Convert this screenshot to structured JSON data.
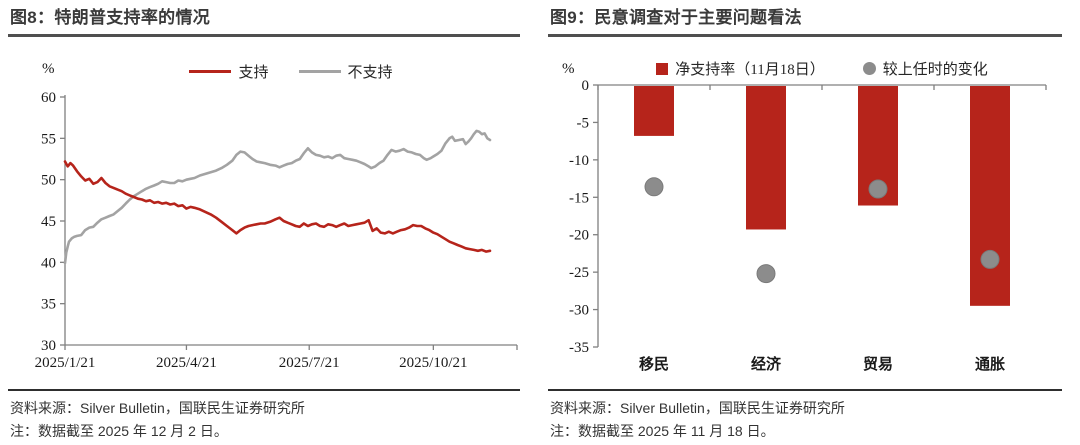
{
  "colors": {
    "red": "#B6241B",
    "line_gray": "#A3A3A3",
    "dot_gray": "#8C8C8C",
    "axis_gray": "#808080",
    "title_text": "#3a3a3a",
    "caption_text": "#333333"
  },
  "panels": {
    "left": {
      "title": "图8：特朗普支持率的情况",
      "unit": "%",
      "legend": [
        {
          "label": "支持",
          "color": "#B6241B"
        },
        {
          "label": "不支持",
          "color": "#A3A3A3"
        }
      ],
      "source": "资料来源：Silver Bulletin，国联民生证券研究所",
      "note": "注：数据截至 2025 年 12 月 2 日。"
    },
    "right": {
      "title": "图9：民意调查对于主要问题看法",
      "unit": "%",
      "legend": [
        {
          "label": "净支持率（11月18日）",
          "color": "#B6241B"
        },
        {
          "label": "较上任时的变化",
          "color": "#8C8C8C"
        }
      ],
      "source": "资料来源：Silver Bulletin，国联民生证券研究所",
      "note": "注：数据截至 2025 年 11 月 18 日。"
    }
  },
  "chart_data": [
    {
      "type": "line",
      "title": "特朗普支持率的情况",
      "ylabel": "%",
      "ylim": [
        30,
        60
      ],
      "yticks": [
        60,
        55,
        50,
        45,
        40,
        35,
        30
      ],
      "xticks": [
        "2025/1/21",
        "2025/4/21",
        "2025/7/21",
        "2025/10/21"
      ],
      "xtick_days": [
        0,
        90,
        181,
        273
      ],
      "axis_end_day": 335,
      "grid": false,
      "legend_position": "top",
      "series": [
        {
          "name": "不支持",
          "color": "#A3A3A3",
          "points": [
            [
              0,
              39.9
            ],
            [
              1,
              41.2
            ],
            [
              2,
              41.9
            ],
            [
              3,
              42.5
            ],
            [
              5,
              42.9
            ],
            [
              7,
              43.1
            ],
            [
              9,
              43.2
            ],
            [
              12,
              43.3
            ],
            [
              15,
              43.9
            ],
            [
              18,
              44.2
            ],
            [
              21,
              44.3
            ],
            [
              24,
              44.8
            ],
            [
              27,
              45.2
            ],
            [
              30,
              45.4
            ],
            [
              33,
              45.6
            ],
            [
              36,
              45.8
            ],
            [
              39,
              46.2
            ],
            [
              42,
              46.6
            ],
            [
              45,
              47.1
            ],
            [
              48,
              47.6
            ],
            [
              51,
              48.0
            ],
            [
              54,
              48.3
            ],
            [
              57,
              48.6
            ],
            [
              60,
              48.9
            ],
            [
              63,
              49.1
            ],
            [
              66,
              49.3
            ],
            [
              69,
              49.5
            ],
            [
              72,
              49.8
            ],
            [
              75,
              49.7
            ],
            [
              78,
              49.6
            ],
            [
              81,
              49.6
            ],
            [
              84,
              49.9
            ],
            [
              87,
              49.8
            ],
            [
              90,
              50.0
            ],
            [
              93,
              50.1
            ],
            [
              96,
              50.2
            ],
            [
              100,
              50.5
            ],
            [
              104,
              50.7
            ],
            [
              108,
              50.9
            ],
            [
              112,
              51.1
            ],
            [
              116,
              51.4
            ],
            [
              120,
              51.8
            ],
            [
              124,
              52.3
            ],
            [
              127,
              53.0
            ],
            [
              130,
              53.4
            ],
            [
              133,
              53.3
            ],
            [
              136,
              52.9
            ],
            [
              139,
              52.5
            ],
            [
              142,
              52.2
            ],
            [
              145,
              52.1
            ],
            [
              148,
              52.0
            ],
            [
              152,
              51.8
            ],
            [
              156,
              51.7
            ],
            [
              159,
              51.5
            ],
            [
              162,
              51.7
            ],
            [
              165,
              51.9
            ],
            [
              168,
              52.0
            ],
            [
              171,
              52.3
            ],
            [
              174,
              52.5
            ],
            [
              177,
              53.2
            ],
            [
              180,
              53.8
            ],
            [
              183,
              53.3
            ],
            [
              186,
              53.0
            ],
            [
              189,
              52.9
            ],
            [
              192,
              52.7
            ],
            [
              195,
              52.8
            ],
            [
              198,
              52.6
            ],
            [
              201,
              52.9
            ],
            [
              204,
              53.0
            ],
            [
              207,
              52.6
            ],
            [
              210,
              52.5
            ],
            [
              213,
              52.4
            ],
            [
              216,
              52.3
            ],
            [
              219,
              52.1
            ],
            [
              222,
              51.9
            ],
            [
              225,
              51.6
            ],
            [
              227,
              51.4
            ],
            [
              230,
              51.6
            ],
            [
              233,
              52.0
            ],
            [
              236,
              52.3
            ],
            [
              239,
              53.0
            ],
            [
              242,
              53.6
            ],
            [
              245,
              53.4
            ],
            [
              248,
              53.5
            ],
            [
              251,
              53.7
            ],
            [
              254,
              53.4
            ],
            [
              257,
              53.3
            ],
            [
              260,
              53.1
            ],
            [
              263,
              53.0
            ],
            [
              266,
              52.6
            ],
            [
              268,
              52.4
            ],
            [
              271,
              52.6
            ],
            [
              273,
              52.8
            ],
            [
              276,
              53.1
            ],
            [
              279,
              53.5
            ],
            [
              282,
              54.4
            ],
            [
              285,
              55.0
            ],
            [
              287,
              55.2
            ],
            [
              289,
              54.7
            ],
            [
              292,
              54.8
            ],
            [
              295,
              54.9
            ],
            [
              297,
              54.3
            ],
            [
              299,
              54.6
            ],
            [
              301,
              55.0
            ],
            [
              303,
              55.5
            ],
            [
              305,
              55.9
            ],
            [
              307,
              55.8
            ],
            [
              309,
              55.5
            ],
            [
              311,
              55.6
            ],
            [
              313,
              55.0
            ],
            [
              315,
              54.8
            ]
          ]
        },
        {
          "name": "支持",
          "color": "#B6241B",
          "points": [
            [
              0,
              52.2
            ],
            [
              2,
              51.6
            ],
            [
              4,
              52.0
            ],
            [
              6,
              51.7
            ],
            [
              9,
              51.0
            ],
            [
              12,
              50.4
            ],
            [
              15,
              49.9
            ],
            [
              18,
              50.1
            ],
            [
              21,
              49.5
            ],
            [
              24,
              49.7
            ],
            [
              27,
              50.2
            ],
            [
              30,
              49.6
            ],
            [
              33,
              49.2
            ],
            [
              36,
              49.0
            ],
            [
              39,
              48.8
            ],
            [
              42,
              48.6
            ],
            [
              45,
              48.3
            ],
            [
              48,
              48.1
            ],
            [
              51,
              47.9
            ],
            [
              54,
              47.7
            ],
            [
              57,
              47.6
            ],
            [
              60,
              47.4
            ],
            [
              63,
              47.5
            ],
            [
              66,
              47.2
            ],
            [
              69,
              47.3
            ],
            [
              72,
              47.1
            ],
            [
              75,
              47.2
            ],
            [
              78,
              47.0
            ],
            [
              81,
              47.1
            ],
            [
              84,
              46.8
            ],
            [
              87,
              46.9
            ],
            [
              90,
              46.5
            ],
            [
              93,
              46.7
            ],
            [
              96,
              46.6
            ],
            [
              100,
              46.4
            ],
            [
              104,
              46.1
            ],
            [
              108,
              45.8
            ],
            [
              112,
              45.4
            ],
            [
              116,
              44.9
            ],
            [
              120,
              44.4
            ],
            [
              124,
              43.9
            ],
            [
              127,
              43.5
            ],
            [
              130,
              43.9
            ],
            [
              133,
              44.2
            ],
            [
              136,
              44.4
            ],
            [
              139,
              44.5
            ],
            [
              142,
              44.6
            ],
            [
              145,
              44.7
            ],
            [
              148,
              44.7
            ],
            [
              152,
              44.9
            ],
            [
              156,
              45.2
            ],
            [
              159,
              45.4
            ],
            [
              162,
              45.0
            ],
            [
              165,
              44.8
            ],
            [
              168,
              44.6
            ],
            [
              171,
              44.4
            ],
            [
              174,
              44.3
            ],
            [
              177,
              44.7
            ],
            [
              180,
              44.4
            ],
            [
              183,
              44.6
            ],
            [
              186,
              44.7
            ],
            [
              189,
              44.4
            ],
            [
              192,
              44.3
            ],
            [
              195,
              44.6
            ],
            [
              198,
              44.5
            ],
            [
              201,
              44.3
            ],
            [
              204,
              44.5
            ],
            [
              207,
              44.7
            ],
            [
              210,
              44.4
            ],
            [
              213,
              44.5
            ],
            [
              216,
              44.6
            ],
            [
              219,
              44.7
            ],
            [
              222,
              44.8
            ],
            [
              225,
              45.1
            ],
            [
              228,
              43.8
            ],
            [
              231,
              44.1
            ],
            [
              234,
              43.6
            ],
            [
              237,
              43.5
            ],
            [
              240,
              43.7
            ],
            [
              243,
              43.5
            ],
            [
              246,
              43.7
            ],
            [
              249,
              43.9
            ],
            [
              252,
              44.0
            ],
            [
              255,
              44.2
            ],
            [
              258,
              44.5
            ],
            [
              261,
              44.4
            ],
            [
              264,
              44.4
            ],
            [
              267,
              44.1
            ],
            [
              270,
              43.9
            ],
            [
              273,
              43.6
            ],
            [
              276,
              43.4
            ],
            [
              279,
              43.1
            ],
            [
              282,
              42.8
            ],
            [
              285,
              42.5
            ],
            [
              288,
              42.3
            ],
            [
              291,
              42.1
            ],
            [
              294,
              41.9
            ],
            [
              297,
              41.7
            ],
            [
              300,
              41.6
            ],
            [
              303,
              41.5
            ],
            [
              306,
              41.4
            ],
            [
              309,
              41.5
            ],
            [
              312,
              41.3
            ],
            [
              315,
              41.4
            ]
          ]
        }
      ]
    },
    {
      "type": "bar",
      "title": "民意调查对于主要问题看法",
      "ylabel": "%",
      "ylim": [
        -35,
        0
      ],
      "yticks": [
        0,
        -5,
        -10,
        -15,
        -20,
        -25,
        -30,
        -35
      ],
      "categories": [
        "移民",
        "经济",
        "贸易",
        "通胀"
      ],
      "grid": false,
      "legend_position": "top",
      "series": [
        {
          "name": "净支持率（11月18日）",
          "type": "bar",
          "color": "#B6241B",
          "values": [
            -6.8,
            -19.3,
            -16.1,
            -29.5
          ]
        },
        {
          "name": "较上任时的变化",
          "type": "scatter",
          "color": "#8C8C8C",
          "values": [
            -13.6,
            -25.2,
            -13.9,
            -23.3
          ]
        }
      ]
    }
  ]
}
